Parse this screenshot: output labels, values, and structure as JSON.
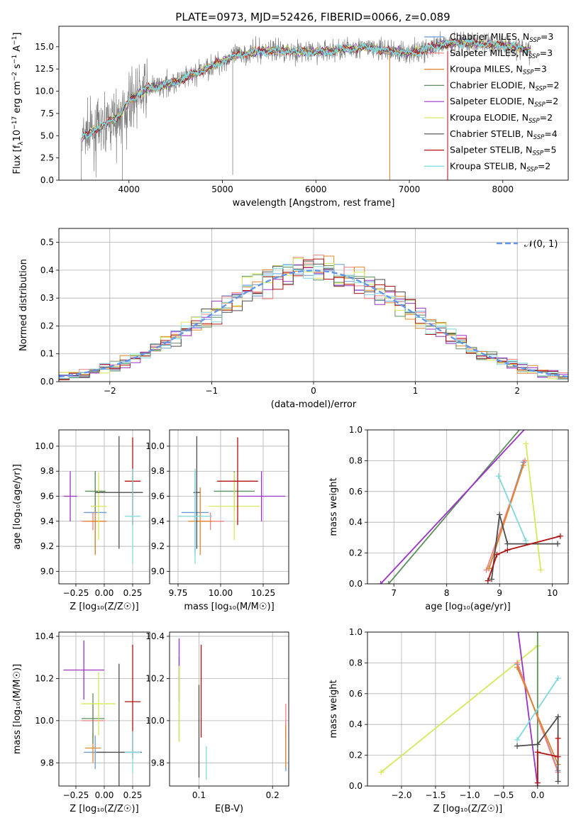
{
  "figure_title": "PLATE=0973, MJD=52426, FIBERID=0066, z=0.089",
  "colors": {
    "chabrier_miles": "#6b9bd2",
    "salpeter_miles": "#f08080",
    "kroupa_miles": "#e0852a",
    "chabrier_elodie": "#5e8f5e",
    "salpeter_elodie": "#9a32c4",
    "kroupa_elodie": "#d7e85a",
    "chabrier_stelib": "#4d4d4d",
    "salpeter_stelib": "#b01010",
    "kroupa_stelib": "#7fd8dd",
    "data": "#808080",
    "normal": "#6495ed"
  },
  "legend_models": [
    {
      "key": "chabrier_miles",
      "label": "Chabrier MILES, N",
      "sub": "SSP",
      "suffix": "=3"
    },
    {
      "key": "salpeter_miles",
      "label": "Salpeter MILES, N",
      "sub": "SSP",
      "suffix": "=3"
    },
    {
      "key": "kroupa_miles",
      "label": "Kroupa MILES, N",
      "sub": "SSP",
      "suffix": "=3"
    },
    {
      "key": "chabrier_elodie",
      "label": "Chabrier ELODIE, N",
      "sub": "SSP",
      "suffix": "=2"
    },
    {
      "key": "salpeter_elodie",
      "label": "Salpeter ELODIE, N",
      "sub": "SSP",
      "suffix": "=2"
    },
    {
      "key": "kroupa_elodie",
      "label": "Kroupa ELODIE, N",
      "sub": "SSP",
      "suffix": "=2"
    },
    {
      "key": "chabrier_stelib",
      "label": "Chabrier STELIB, N",
      "sub": "SSP",
      "suffix": "=4"
    },
    {
      "key": "salpeter_stelib",
      "label": "Salpeter STELIB, N",
      "sub": "SSP",
      "suffix": "=5"
    },
    {
      "key": "kroupa_stelib",
      "label": "Kroupa STELIB, N",
      "sub": "SSP",
      "suffix": "=2"
    }
  ],
  "chart_data": [
    {
      "id": "spectrum",
      "type": "line",
      "xlabel": "wavelength [Angstrom, rest frame]",
      "ylabel": "Flux [f",
      "ylabel_sub": "λ",
      "ylabel_rest": "10",
      "ylabel_exp": "−17",
      "ylabel_units": " erg cm",
      "ylabel_exp2": "−2",
      "ylabel_units2": " s",
      "ylabel_exp3": "−1",
      "ylabel_units3": " A",
      "ylabel_exp4": "−1",
      "ylabel_end": "]",
      "xlim": [
        3250,
        8700
      ],
      "ylim": [
        0,
        17.3
      ],
      "xticks": [
        4000,
        5000,
        6000,
        7000,
        8000
      ],
      "yticks": [
        0.0,
        2.5,
        5.0,
        7.5,
        10.0,
        12.5,
        15.0
      ],
      "continuum_wavelength": [
        3500,
        3700,
        3900,
        4000,
        4200,
        4500,
        4800,
        5000,
        5200,
        5500,
        6000,
        6500,
        7000,
        7500,
        8000,
        8300
      ],
      "continuum_flux": [
        4.8,
        6.0,
        7.3,
        9.0,
        10.3,
        11.0,
        12.4,
        13.4,
        14.2,
        14.6,
        14.4,
        14.9,
        14.3,
        15.5,
        15.2,
        14.6
      ],
      "spikes_down": [
        {
          "x": 5110,
          "y": 0.6
        },
        {
          "x": 6790,
          "y": 0.0
        },
        {
          "x": 7410,
          "y": 0.0
        },
        {
          "x": 3930,
          "y": 0.0
        },
        {
          "x": 3490,
          "y": 0.0
        }
      ]
    },
    {
      "id": "residual_hist",
      "type": "line",
      "xlabel": "(data-model)/error",
      "ylabel": "Normed distribution",
      "legend": "𝒩(0, 1)",
      "xlim": [
        -2.5,
        2.5
      ],
      "ylim": [
        0,
        0.55
      ],
      "xticks": [
        -2,
        -1,
        0,
        1,
        2
      ],
      "xticklabels": [
        "−2",
        "−1",
        "0",
        "1",
        "2"
      ],
      "yticks": [
        0.0,
        0.1,
        0.2,
        0.3,
        0.4,
        0.5
      ],
      "bin_width": 0.1
    },
    {
      "id": "age_vs_Z",
      "type": "scatter",
      "xlabel": "Z [log₁₀(Z/Z☉)]",
      "ylabel": "age  [log₁₀(age/yr)]",
      "xlim": [
        -0.4,
        0.4
      ],
      "ylim": [
        8.9,
        10.13
      ],
      "xticks": [
        -0.25,
        0.0,
        0.25
      ],
      "xticklabels": [
        "−0.25",
        "0.00",
        "0.25"
      ],
      "yticks": [
        9.0,
        9.2,
        9.4,
        9.6,
        9.8,
        10.0
      ],
      "points": [
        {
          "key": "chabrier_miles",
          "x": -0.08,
          "xerr": 0.1,
          "y": 9.47,
          "yerr": 0.33
        },
        {
          "key": "salpeter_miles",
          "x": -0.1,
          "xerr": 0.1,
          "y": 9.4,
          "yerr": 0.07
        },
        {
          "key": "kroupa_miles",
          "x": -0.08,
          "xerr": 0.1,
          "y": 9.4,
          "yerr": 0.27
        },
        {
          "key": "chabrier_elodie",
          "x": -0.08,
          "xerr": 0.09,
          "y": 9.64,
          "yerr": 0.16
        },
        {
          "key": "salpeter_elodie",
          "x": -0.3,
          "xerr": 0.06,
          "y": 9.6,
          "yerr": 0.2
        },
        {
          "key": "kroupa_elodie",
          "x": -0.05,
          "xerr": 0.07,
          "y": 9.52,
          "yerr": 0.27
        },
        {
          "key": "chabrier_stelib",
          "x": 0.13,
          "xerr": 0.21,
          "y": 9.63,
          "yerr": 0.45
        },
        {
          "key": "salpeter_stelib",
          "x": 0.25,
          "xerr": 0.07,
          "y": 9.72,
          "yerr": 0.35
        },
        {
          "key": "kroupa_stelib",
          "x": 0.25,
          "xerr": 0.07,
          "y": 9.44,
          "yerr": 0.38
        }
      ]
    },
    {
      "id": "age_vs_mass",
      "type": "scatter",
      "xlabel": "mass [log₁₀(M/M☉)]",
      "ylabel": "",
      "xlim": [
        9.7,
        10.4
      ],
      "ylim": [
        8.9,
        10.13
      ],
      "xticks": [
        9.75,
        10.0,
        10.25
      ],
      "xticklabels": [
        "9.75",
        "10.00",
        "10.25"
      ],
      "yticks": [
        9.0,
        9.2,
        9.4,
        9.6,
        9.8,
        10.0
      ],
      "points": [
        {
          "key": "chabrier_miles",
          "x": 9.85,
          "xerr": 0.08,
          "y": 9.47,
          "yerr": 0.33
        },
        {
          "key": "salpeter_miles",
          "x": 9.94,
          "xerr": 0.08,
          "y": 9.4,
          "yerr": 0.07
        },
        {
          "key": "kroupa_miles",
          "x": 9.88,
          "xerr": 0.07,
          "y": 9.4,
          "yerr": 0.27
        },
        {
          "key": "chabrier_elodie",
          "x": 10.08,
          "xerr": 0.12,
          "y": 9.64,
          "yerr": 0.16
        },
        {
          "key": "salpeter_elodie",
          "x": 10.24,
          "xerr": 0.14,
          "y": 9.6,
          "yerr": 0.2
        },
        {
          "key": "kroupa_elodie",
          "x": 10.08,
          "xerr": 0.15,
          "y": 9.52,
          "yerr": 0.27
        },
        {
          "key": "chabrier_stelib",
          "x": 9.86,
          "xerr": 0.02,
          "y": 9.63,
          "yerr": 0.45
        },
        {
          "key": "salpeter_stelib",
          "x": 10.1,
          "xerr": 0.12,
          "y": 9.72,
          "yerr": 0.35
        },
        {
          "key": "kroupa_stelib",
          "x": 9.85,
          "xerr": 0.1,
          "y": 9.44,
          "yerr": 0.38
        }
      ]
    },
    {
      "id": "weight_vs_age",
      "type": "line",
      "xlabel": "age  [log₁₀(age/yr)]",
      "ylabel": "mass weight",
      "xlim": [
        6.5,
        10.3
      ],
      "ylim": [
        0,
        1
      ],
      "xticks": [
        7,
        8,
        9,
        10
      ],
      "yticks": [
        0.0,
        0.2,
        0.4,
        0.6,
        0.8,
        1.0
      ],
      "series": [
        {
          "key": "chabrier_elodie",
          "x": [
            6.9,
            9.5
          ],
          "y": [
            0.0,
            1.05
          ]
        },
        {
          "key": "salpeter_elodie",
          "x": [
            6.75,
            9.6
          ],
          "y": [
            0.0,
            1.05
          ]
        },
        {
          "key": "chabrier_miles",
          "x": [
            8.8,
            9.45
          ],
          "y": [
            0.1,
            0.79
          ]
        },
        {
          "key": "salpeter_miles",
          "x": [
            8.75,
            9.48
          ],
          "y": [
            0.09,
            0.8
          ]
        },
        {
          "key": "kroupa_miles",
          "x": [
            8.8,
            9.45
          ],
          "y": [
            0.1,
            0.77
          ]
        },
        {
          "key": "kroupa_elodie",
          "x": [
            9.5,
            9.78
          ],
          "y": [
            0.91,
            0.09
          ]
        },
        {
          "key": "kroupa_stelib",
          "x": [
            8.98,
            9.5
          ],
          "y": [
            0.7,
            0.28
          ]
        },
        {
          "key": "chabrier_stelib",
          "x": [
            8.85,
            9.0,
            9.15,
            10.1
          ],
          "y": [
            0.03,
            0.45,
            0.26,
            0.26
          ]
        },
        {
          "key": "salpeter_stelib",
          "x": [
            8.78,
            8.95,
            9.15,
            10.15
          ],
          "y": [
            0.02,
            0.19,
            0.22,
            0.31
          ]
        }
      ]
    },
    {
      "id": "mass_vs_Z",
      "type": "scatter",
      "xlabel": "Z [log₁₀(Z/Z☉)]",
      "ylabel": "mass [log₁₀(M/M☉)]",
      "xlim": [
        -0.4,
        0.4
      ],
      "ylim": [
        9.69,
        10.42
      ],
      "xticks": [
        -0.25,
        0.0,
        0.25
      ],
      "xticklabels": [
        "−0.25",
        "0.00",
        "0.25"
      ],
      "yticks": [
        9.8,
        10.0,
        10.2,
        10.4
      ],
      "points": [
        {
          "key": "chabrier_miles",
          "x": -0.08,
          "xerr": 0.1,
          "y": 9.85,
          "yerr": 0.08
        },
        {
          "key": "salpeter_miles",
          "x": -0.1,
          "xerr": 0.1,
          "y": 10.0,
          "yerr": 0.08
        },
        {
          "key": "kroupa_miles",
          "x": -0.1,
          "xerr": 0.07,
          "y": 9.87,
          "yerr": 0.07
        },
        {
          "key": "chabrier_elodie",
          "x": -0.1,
          "xerr": 0.1,
          "y": 10.01,
          "yerr": 0.12
        },
        {
          "key": "salpeter_elodie",
          "x": -0.18,
          "xerr": 0.18,
          "y": 10.24,
          "yerr": 0.14
        },
        {
          "key": "kroupa_elodie",
          "x": -0.05,
          "xerr": 0.15,
          "y": 10.08,
          "yerr": 0.15
        },
        {
          "key": "chabrier_stelib",
          "x": 0.13,
          "xerr": 0.2,
          "y": 9.85,
          "yerr": 0.42
        },
        {
          "key": "salpeter_stelib",
          "x": 0.25,
          "xerr": 0.07,
          "y": 10.09,
          "yerr": 0.27
        },
        {
          "key": "kroupa_stelib",
          "x": 0.25,
          "xerr": 0.07,
          "y": 9.85,
          "yerr": 0.1
        }
      ]
    },
    {
      "id": "mass_vs_EBV",
      "type": "scatter",
      "xlabel": "E(B-V)",
      "ylabel": "",
      "xlim": [
        0.06,
        0.222
      ],
      "ylim": [
        9.69,
        10.42
      ],
      "xticks": [
        0.1,
        0.2
      ],
      "yticks": [
        9.8,
        10.0,
        10.2,
        10.4
      ],
      "points": [
        {
          "key": "chabrier_miles",
          "x": 0.218,
          "xerr": 0,
          "y": 9.88,
          "yerr": 0.12
        },
        {
          "key": "salpeter_miles",
          "x": 0.218,
          "xerr": 0,
          "y": 10.0,
          "yerr": 0.08
        },
        {
          "key": "kroupa_miles",
          "x": 0.218,
          "xerr": 0,
          "y": 9.88,
          "yerr": 0.1
        },
        {
          "key": "chabrier_elodie",
          "x": 0.073,
          "xerr": 0,
          "y": 10.1,
          "yerr": 0.2
        },
        {
          "key": "salpeter_elodie",
          "x": 0.073,
          "xerr": 0,
          "y": 10.24,
          "yerr": 0.15
        },
        {
          "key": "kroupa_elodie",
          "x": 0.073,
          "xerr": 0,
          "y": 10.08,
          "yerr": 0.18
        },
        {
          "key": "chabrier_stelib",
          "x": 0.1,
          "xerr": 0,
          "y": 9.95,
          "yerr": 0.22
        },
        {
          "key": "salpeter_stelib",
          "x": 0.103,
          "xerr": 0,
          "y": 10.14,
          "yerr": 0.22
        },
        {
          "key": "kroupa_stelib",
          "x": 0.11,
          "xerr": 0,
          "y": 9.8,
          "yerr": 0.08
        }
      ]
    },
    {
      "id": "weight_vs_Z",
      "type": "line",
      "xlabel": "Z [log₁₀(Z/Z☉)]",
      "ylabel": "mass weight",
      "xlim": [
        -2.5,
        0.45
      ],
      "ylim": [
        0,
        1
      ],
      "xticks": [
        -2.0,
        -1.5,
        -1.0,
        -0.5,
        0.0
      ],
      "xticklabels": [
        "−2.0",
        "−1.5",
        "−1.0",
        "−0.5",
        "0.0"
      ],
      "yticks": [
        0.0,
        0.2,
        0.4,
        0.6,
        0.8,
        1.0
      ],
      "series": [
        {
          "key": "kroupa_elodie",
          "x": [
            -2.3,
            0.0
          ],
          "y": [
            0.09,
            0.91
          ]
        },
        {
          "key": "salpeter_elodie",
          "x": [
            -0.3,
            0.0
          ],
          "y": [
            1.05,
            0.0
          ]
        },
        {
          "key": "chabrier_elodie",
          "x": [
            0.0,
            0.0
          ],
          "y": [
            1.05,
            0.0
          ]
        },
        {
          "key": "chabrier_miles",
          "x": [
            -0.3,
            0.3
          ],
          "y": [
            0.79,
            0.1
          ]
        },
        {
          "key": "salpeter_miles",
          "x": [
            -0.3,
            0.3
          ],
          "y": [
            0.8,
            0.09
          ]
        },
        {
          "key": "kroupa_miles",
          "x": [
            -0.3,
            0.3
          ],
          "y": [
            0.77,
            0.14
          ]
        },
        {
          "key": "kroupa_stelib",
          "x": [
            -0.3,
            0.3
          ],
          "y": [
            0.3,
            0.7
          ]
        },
        {
          "key": "chabrier_stelib",
          "x": [
            -0.3,
            0.0,
            0.3,
            0.3
          ],
          "y": [
            0.26,
            0.27,
            0.45,
            0.03
          ]
        },
        {
          "key": "salpeter_stelib",
          "x": [
            0.0,
            0.0,
            0.3,
            0.3
          ],
          "y": [
            0.02,
            0.22,
            0.19,
            0.31
          ]
        }
      ]
    }
  ]
}
